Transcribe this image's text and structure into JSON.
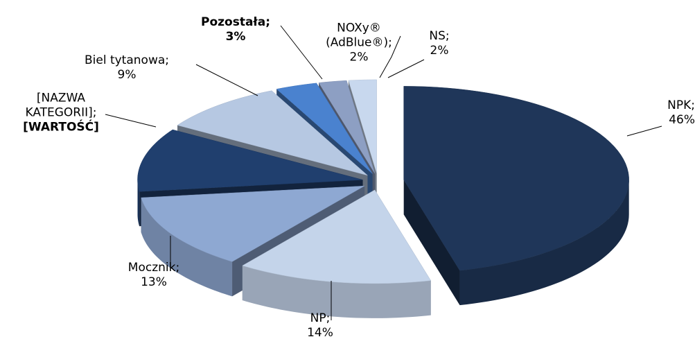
{
  "chart_data": {
    "type": "pie3d",
    "categories": [
      "NPK;",
      "NP;",
      "Mocznik;",
      "[NAZWA KATEGORII];",
      "Biel tytanowa;",
      "Pozostała;",
      "NOXy® (AdBlue®);",
      "NS;"
    ],
    "values": [
      46,
      14,
      13,
      11,
      9,
      3,
      2,
      2
    ],
    "value_labels": [
      "46%",
      "14%",
      "13%",
      "[WARTOŚĆ]",
      "9%",
      "3%",
      "2%",
      "2%"
    ],
    "colors": [
      "#1f3659",
      "#c4d4ea",
      "#8ea8d2",
      "#203f6e",
      "#b6c8e2",
      "#4a82cf",
      "#8d9fc3",
      "#c8d8ee"
    ]
  }
}
